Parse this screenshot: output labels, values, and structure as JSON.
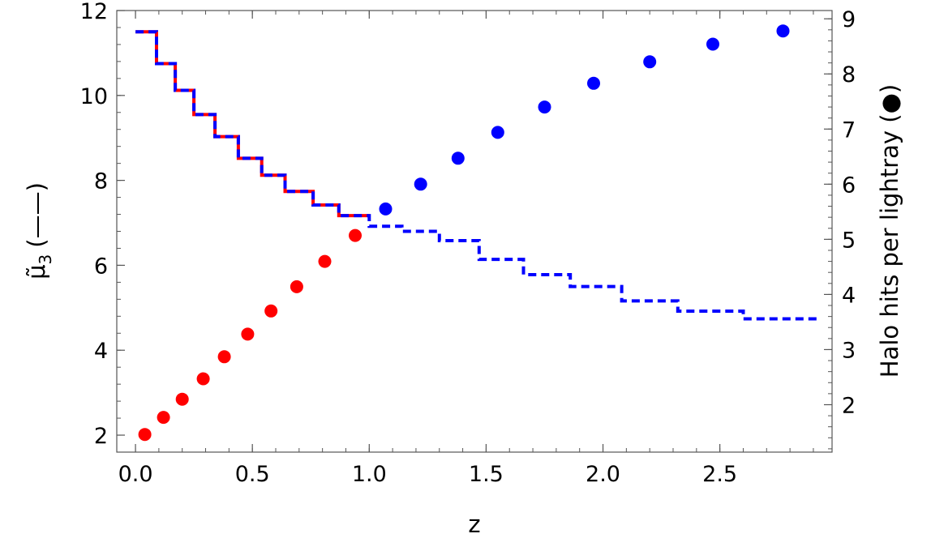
{
  "chart_data": {
    "type": "scatter",
    "xlabel": "z",
    "ylabel_left_symbol": "μ̃",
    "ylabel_left_subscript": "3",
    "ylabel_left_suffix": "(——)",
    "ylabel_right": "Halo hits per lightray (●)",
    "xlim": [
      -0.08,
      2.98
    ],
    "ylim_left": [
      1.6,
      12.0
    ],
    "ylim_right": [
      1.14,
      9.15
    ],
    "x_ticks": [
      "0.0",
      "0.5",
      "1.0",
      "1.5",
      "2.0",
      "2.5"
    ],
    "x_tick_values": [
      0.0,
      0.5,
      1.0,
      1.5,
      2.0,
      2.5
    ],
    "y_left_ticks": [
      "2",
      "4",
      "6",
      "8",
      "10",
      "12"
    ],
    "y_left_tick_values": [
      2,
      4,
      6,
      8,
      10,
      12
    ],
    "y_right_ticks": [
      "2",
      "3",
      "4",
      "5",
      "6",
      "7",
      "8",
      "9"
    ],
    "y_right_tick_values": [
      2,
      3,
      4,
      5,
      6,
      7,
      8,
      9
    ],
    "series": [
      {
        "kind": "step-line",
        "axis": "left",
        "style": "solid",
        "color": "#ff0000",
        "x": [
          0.0,
          0.09,
          0.17,
          0.25,
          0.34,
          0.44,
          0.54,
          0.64,
          0.76,
          0.87,
          1.0
        ],
        "y": [
          11.5,
          10.75,
          10.12,
          9.55,
          9.03,
          8.52,
          8.12,
          7.74,
          7.42,
          7.17,
          7.17
        ]
      },
      {
        "kind": "step-line",
        "axis": "left",
        "style": "dashed",
        "color": "#0000ff",
        "x": [
          0.0,
          0.09,
          0.17,
          0.25,
          0.34,
          0.44,
          0.54,
          0.64,
          0.76,
          0.87,
          1.0,
          1.14,
          1.3,
          1.47,
          1.66,
          1.86,
          2.08,
          2.32,
          2.6,
          2.92
        ],
        "y": [
          11.5,
          10.75,
          10.12,
          9.55,
          9.03,
          8.52,
          8.12,
          7.74,
          7.42,
          7.17,
          6.92,
          6.8,
          6.58,
          6.14,
          5.78,
          5.5,
          5.16,
          4.92,
          4.74,
          4.74
        ]
      },
      {
        "kind": "points",
        "axis": "right",
        "color": "#ff0000",
        "x": [
          0.04,
          0.12,
          0.2,
          0.29,
          0.38,
          0.48,
          0.58,
          0.69,
          0.81,
          0.94
        ],
        "y": [
          1.46,
          1.77,
          2.1,
          2.47,
          2.87,
          3.28,
          3.7,
          4.14,
          4.6,
          5.07
        ]
      },
      {
        "kind": "points",
        "axis": "right",
        "color": "#0000ff",
        "x": [
          1.07,
          1.22,
          1.38,
          1.55,
          1.75,
          1.96,
          2.2,
          2.47,
          2.77
        ],
        "y": [
          5.55,
          6.0,
          6.47,
          6.94,
          7.4,
          7.83,
          8.22,
          8.54,
          8.78
        ]
      }
    ]
  }
}
